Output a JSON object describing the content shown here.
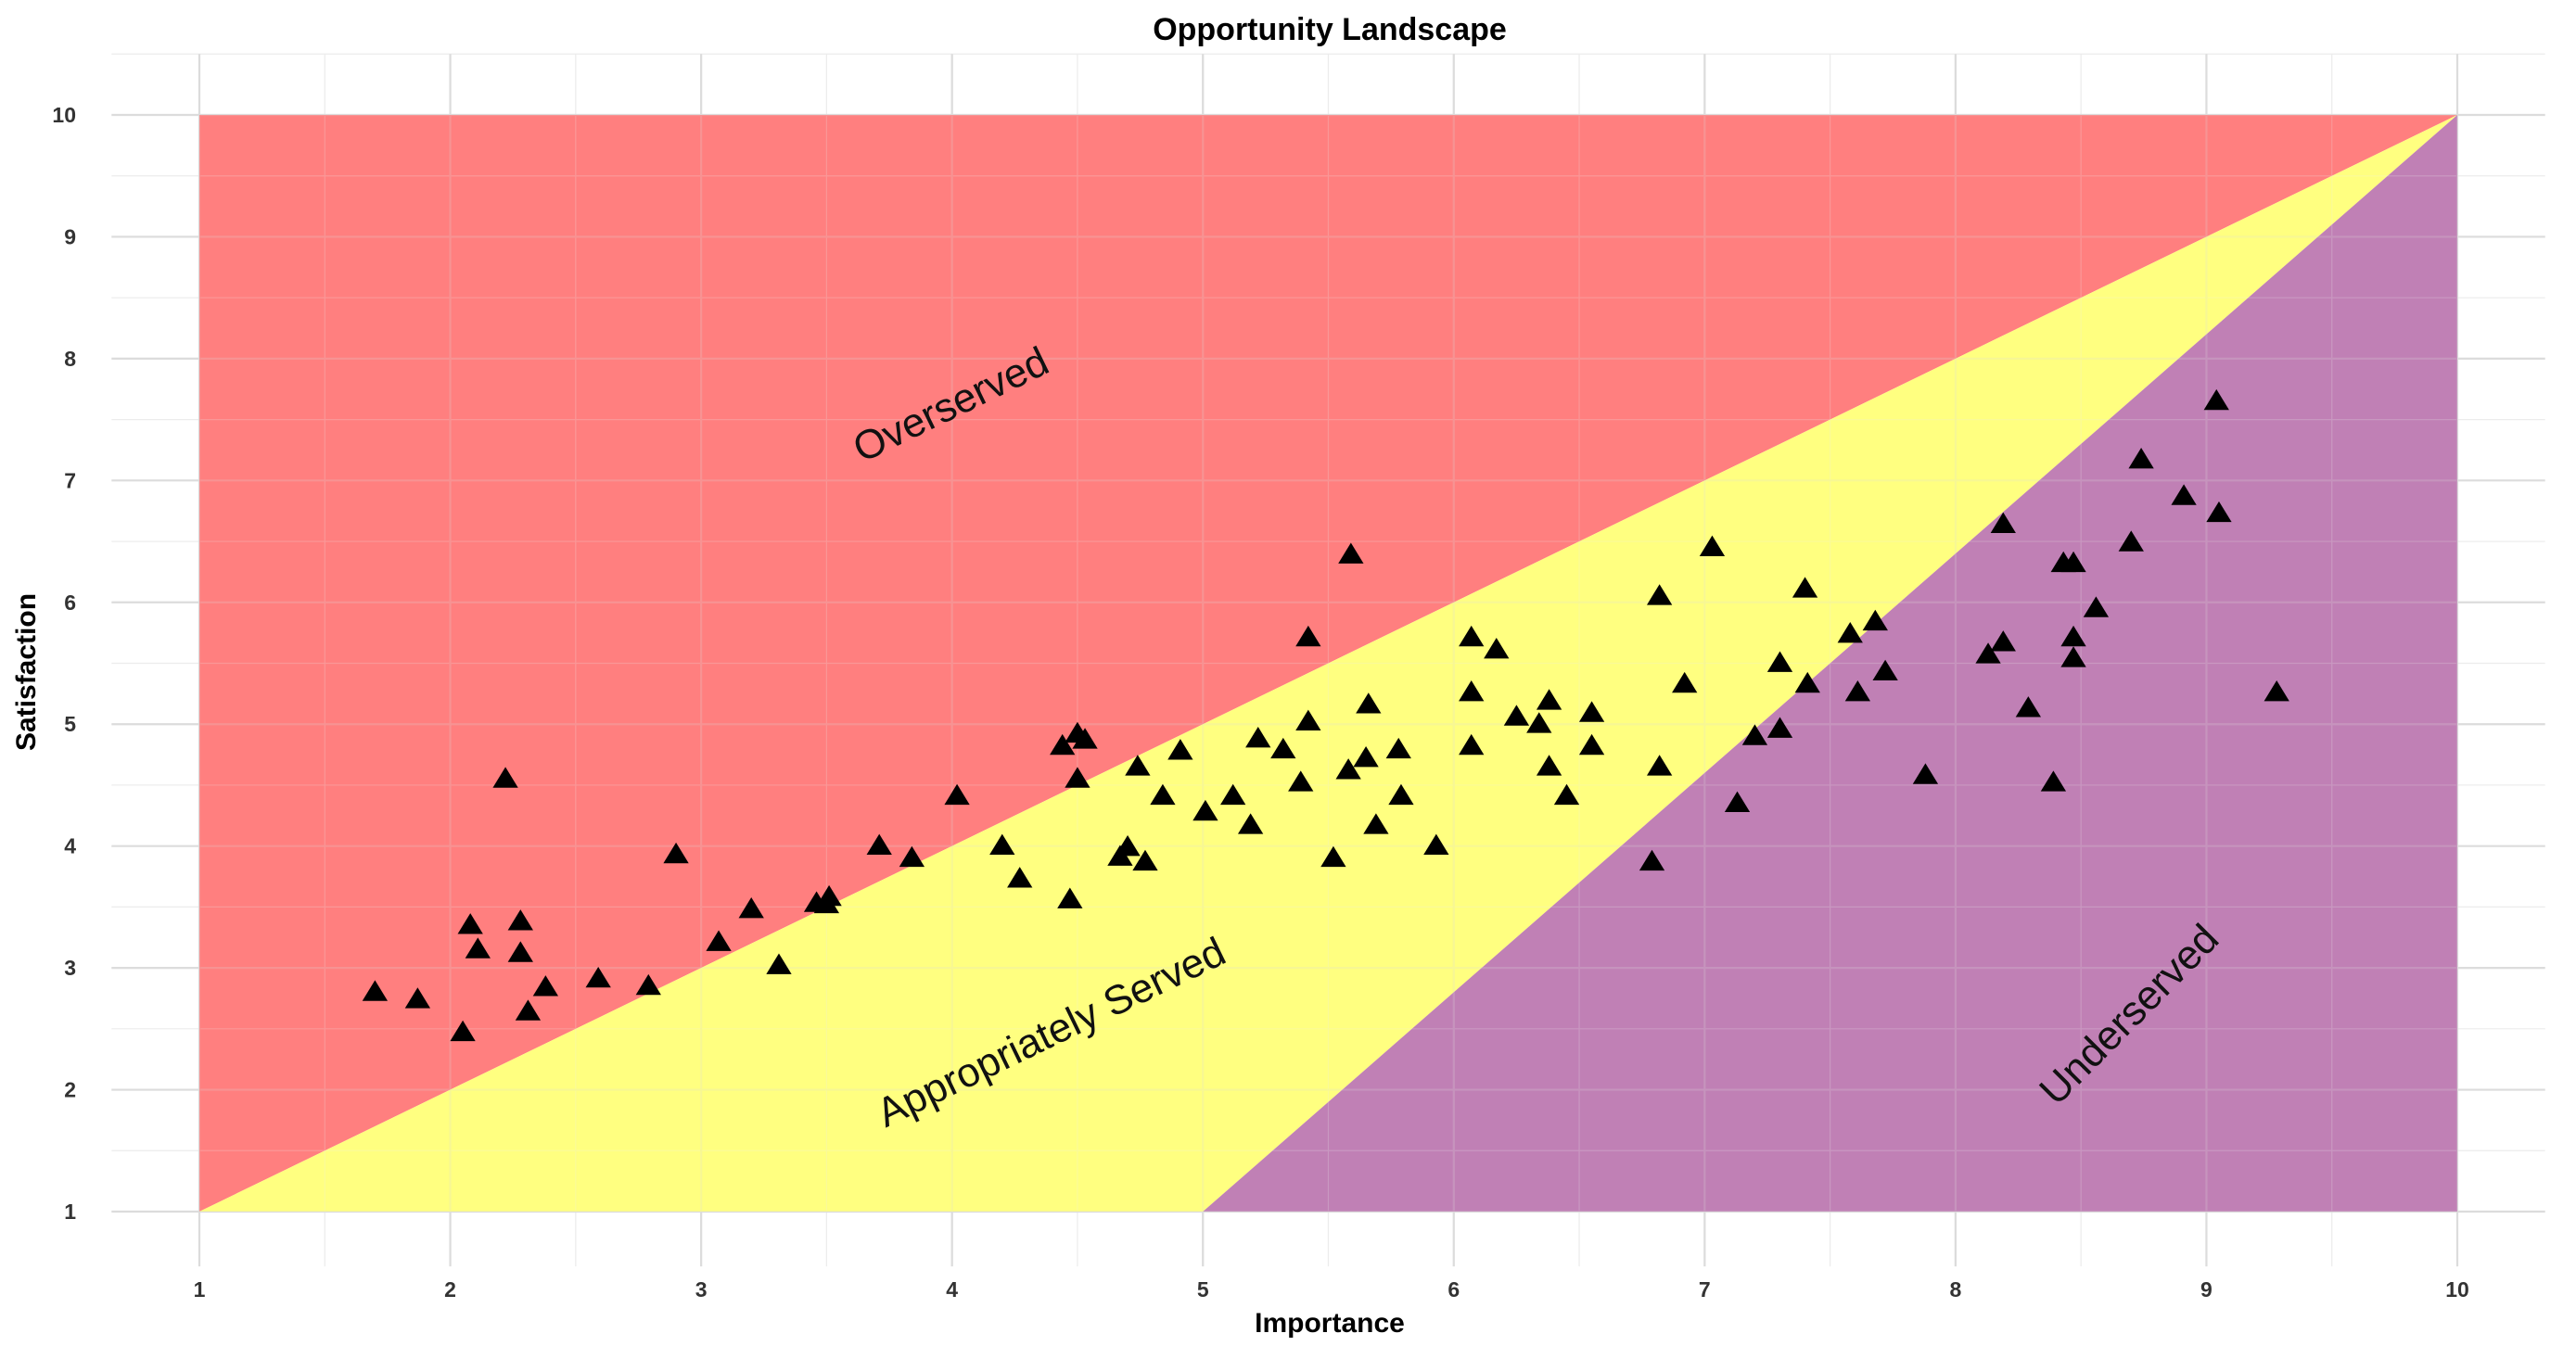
{
  "chart_data": {
    "type": "scatter",
    "title": "Opportunity Landscape",
    "xlabel": "Importance",
    "ylabel": "Satisfaction",
    "xlim": [
      0.65,
      10.35
    ],
    "ylim": [
      0.55,
      10.5
    ],
    "x_ticks": [
      1,
      2,
      3,
      4,
      5,
      6,
      7,
      8,
      9,
      10
    ],
    "y_ticks": [
      1,
      2,
      3,
      4,
      5,
      6,
      7,
      8,
      9,
      10
    ],
    "grid": true,
    "legend": "none",
    "regions": [
      {
        "name": "Overserved",
        "color": "#ff7f7f",
        "polygon": [
          [
            1,
            1
          ],
          [
            1,
            10
          ],
          [
            10,
            10
          ]
        ],
        "label_at": [
          4,
          7.6
        ]
      },
      {
        "name": "Appropriately Served",
        "color": "#ffff80",
        "polygon": [
          [
            1,
            1
          ],
          [
            10,
            10
          ],
          [
            5,
            1
          ]
        ],
        "label_at": [
          4.4,
          2.45
        ]
      },
      {
        "name": "Underserved",
        "color": "#c080b5",
        "polygon": [
          [
            5,
            1
          ],
          [
            10,
            10
          ],
          [
            10,
            1
          ]
        ],
        "label_at": [
          8.7,
          2.6
        ]
      }
    ],
    "marker": "triangle",
    "marker_color": "#000000",
    "points": [
      [
        1.7,
        2.8
      ],
      [
        1.87,
        2.74
      ],
      [
        2.05,
        2.47
      ],
      [
        2.08,
        3.35
      ],
      [
        2.11,
        3.15
      ],
      [
        2.22,
        4.55
      ],
      [
        2.28,
        3.38
      ],
      [
        2.28,
        3.12
      ],
      [
        2.31,
        2.64
      ],
      [
        2.38,
        2.84
      ],
      [
        2.59,
        2.91
      ],
      [
        2.79,
        2.85
      ],
      [
        2.9,
        3.93
      ],
      [
        3.07,
        3.21
      ],
      [
        3.2,
        3.48
      ],
      [
        3.31,
        3.02
      ],
      [
        3.46,
        3.53
      ],
      [
        3.5,
        3.52
      ],
      [
        3.51,
        3.58
      ],
      [
        3.71,
        4.0
      ],
      [
        3.84,
        3.9
      ],
      [
        4.02,
        4.41
      ],
      [
        4.2,
        4.0
      ],
      [
        4.27,
        3.73
      ],
      [
        4.44,
        4.82
      ],
      [
        4.47,
        3.56
      ],
      [
        4.5,
        4.92
      ],
      [
        4.5,
        4.55
      ],
      [
        4.53,
        4.87
      ],
      [
        4.67,
        3.91
      ],
      [
        4.7,
        3.99
      ],
      [
        4.74,
        4.65
      ],
      [
        4.77,
        3.87
      ],
      [
        4.84,
        4.41
      ],
      [
        4.91,
        4.78
      ],
      [
        5.01,
        4.28
      ],
      [
        5.12,
        4.41
      ],
      [
        5.19,
        4.17
      ],
      [
        5.22,
        4.88
      ],
      [
        5.32,
        4.79
      ],
      [
        5.39,
        4.52
      ],
      [
        5.42,
        5.02
      ],
      [
        5.42,
        5.71
      ],
      [
        5.52,
        3.9
      ],
      [
        5.58,
        4.62
      ],
      [
        5.59,
        6.39
      ],
      [
        5.65,
        4.72
      ],
      [
        5.66,
        5.16
      ],
      [
        5.69,
        4.17
      ],
      [
        5.78,
        4.79
      ],
      [
        5.79,
        4.41
      ],
      [
        5.93,
        4.0
      ],
      [
        6.07,
        5.71
      ],
      [
        6.07,
        5.26
      ],
      [
        6.07,
        4.82
      ],
      [
        6.17,
        5.61
      ],
      [
        6.25,
        5.06
      ],
      [
        6.34,
        5.0
      ],
      [
        6.38,
        5.19
      ],
      [
        6.38,
        4.65
      ],
      [
        6.45,
        4.41
      ],
      [
        6.55,
        5.09
      ],
      [
        6.55,
        4.82
      ],
      [
        6.79,
        3.87
      ],
      [
        6.82,
        6.05
      ],
      [
        6.82,
        4.65
      ],
      [
        6.92,
        5.33
      ],
      [
        7.03,
        6.45
      ],
      [
        7.13,
        4.35
      ],
      [
        7.2,
        4.9
      ],
      [
        7.3,
        5.5
      ],
      [
        7.3,
        4.96
      ],
      [
        7.4,
        6.11
      ],
      [
        7.41,
        5.33
      ],
      [
        7.58,
        5.74
      ],
      [
        7.61,
        5.26
      ],
      [
        7.68,
        5.84
      ],
      [
        7.72,
        5.43
      ],
      [
        7.88,
        4.58
      ],
      [
        8.13,
        5.57
      ],
      [
        8.19,
        6.64
      ],
      [
        8.19,
        5.67
      ],
      [
        8.29,
        5.13
      ],
      [
        8.39,
        4.52
      ],
      [
        8.43,
        6.32
      ],
      [
        8.47,
        6.32
      ],
      [
        8.47,
        5.71
      ],
      [
        8.47,
        5.54
      ],
      [
        8.56,
        5.95
      ],
      [
        8.7,
        6.49
      ],
      [
        8.74,
        7.17
      ],
      [
        8.91,
        6.87
      ],
      [
        9.04,
        7.65
      ],
      [
        9.05,
        6.73
      ],
      [
        9.28,
        5.26
      ]
    ]
  }
}
